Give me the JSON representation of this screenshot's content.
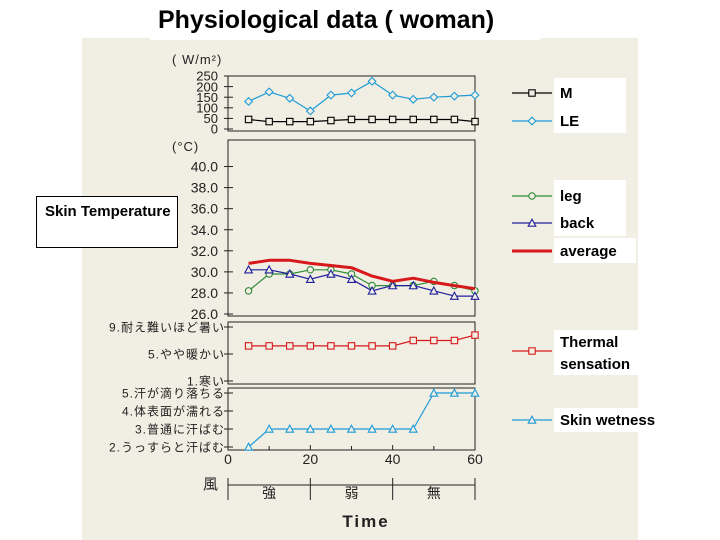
{
  "page": {
    "title": "Physiological data ( woman)"
  },
  "labels": {
    "skin_temperature": "Skin Temperature"
  },
  "chart_data": [
    {
      "type": "line",
      "panel": "energy",
      "ylabel": "( W/m²)",
      "ylim": [
        0,
        250
      ],
      "yticks": [
        "250",
        "200",
        "150",
        "100",
        "50",
        "0"
      ],
      "ytick_values": [
        250,
        200,
        150,
        100,
        50,
        0
      ],
      "x": [
        0,
        5,
        10,
        15,
        20,
        25,
        30,
        35,
        40,
        45,
        50,
        55,
        60
      ],
      "series": [
        {
          "name": "M",
          "color": "#000000",
          "marker": "square",
          "x": [
            5,
            10,
            15,
            20,
            25,
            30,
            35,
            40,
            45,
            50,
            55,
            60
          ],
          "values": [
            45,
            35,
            35,
            35,
            40,
            45,
            45,
            45,
            45,
            45,
            45,
            35
          ]
        },
        {
          "name": "LE",
          "color": "#1e9bd7",
          "marker": "diamond",
          "x": [
            5,
            10,
            15,
            20,
            25,
            30,
            35,
            40,
            45,
            50,
            55,
            60
          ],
          "values": [
            130,
            175,
            145,
            85,
            160,
            170,
            225,
            160,
            140,
            150,
            155,
            160
          ]
        }
      ]
    },
    {
      "type": "line",
      "panel": "skin-temperature",
      "ylabel": "(°C)",
      "ylim": [
        26,
        41
      ],
      "yticks": [
        "40.0",
        "38.0",
        "36.0",
        "34.0",
        "32.0",
        "30.0",
        "28.0",
        "26.0"
      ],
      "ytick_values": [
        40,
        38,
        36,
        34,
        32,
        30,
        28,
        26
      ],
      "series": [
        {
          "name": "leg",
          "color": "#2e8b3a",
          "marker": "circle",
          "x": [
            5,
            10,
            15,
            20,
            25,
            30,
            35,
            40,
            45,
            50,
            55,
            60
          ],
          "values": [
            28.2,
            29.8,
            29.8,
            30.2,
            30.2,
            29.8,
            28.7,
            28.7,
            28.7,
            29.1,
            28.7,
            28.2
          ]
        },
        {
          "name": "back",
          "color": "#1f1f9c",
          "marker": "triangle",
          "x": [
            5,
            10,
            15,
            20,
            25,
            30,
            35,
            40,
            45,
            50,
            55,
            60
          ],
          "values": [
            30.2,
            30.2,
            29.8,
            29.3,
            29.8,
            29.3,
            28.2,
            28.7,
            28.7,
            28.2,
            27.7,
            27.7
          ]
        },
        {
          "name": "average",
          "color": "#d7191c",
          "marker": "none",
          "thick": true,
          "x": [
            5,
            10,
            15,
            20,
            25,
            30,
            35,
            40,
            45,
            50,
            55,
            60
          ],
          "values": [
            30.8,
            31.1,
            31.1,
            30.8,
            30.6,
            30.4,
            29.6,
            29.1,
            29.4,
            29.0,
            28.7,
            28.4
          ]
        }
      ]
    },
    {
      "type": "line",
      "panel": "thermal-sensation",
      "ylim": [
        1,
        9
      ],
      "yticks": [
        "9.耐え難いほど暑い",
        "5.やや暖かい",
        "1.寒い"
      ],
      "ytick_values": [
        9,
        5,
        1
      ],
      "series": [
        {
          "name": "Thermal sensation",
          "color": "#d7191c",
          "marker": "square",
          "x": [
            5,
            10,
            15,
            20,
            25,
            30,
            35,
            40,
            45,
            50,
            55,
            60
          ],
          "values": [
            6.2,
            6.2,
            6.2,
            6.2,
            6.2,
            6.2,
            6.2,
            6.2,
            7.0,
            7.0,
            7.0,
            7.8
          ]
        }
      ]
    },
    {
      "type": "line",
      "panel": "skin-wetness",
      "ylim": [
        2,
        5
      ],
      "yticks": [
        "5.汗が滴り落ちる",
        "4.体表面が濡れる",
        "3.普通に汗ばむ",
        "2.うっすらと汗ばむ"
      ],
      "ytick_values": [
        5,
        4,
        3,
        2
      ],
      "xlim": [
        0,
        60
      ],
      "xticks": [
        "0",
        "20",
        "40",
        "60"
      ],
      "xtick_values": [
        0,
        20,
        40,
        60
      ],
      "xlabel": "Time",
      "wind": {
        "label": "風",
        "segments": [
          "強",
          "弱",
          "無"
        ]
      },
      "series": [
        {
          "name": "Skin wetness",
          "color": "#1e9bd7",
          "marker": "triangle",
          "x": [
            5,
            10,
            15,
            20,
            25,
            30,
            35,
            40,
            45,
            50,
            55,
            60
          ],
          "values": [
            2,
            3,
            3,
            3,
            3,
            3,
            3,
            3,
            3,
            5,
            5,
            5
          ]
        }
      ]
    }
  ]
}
